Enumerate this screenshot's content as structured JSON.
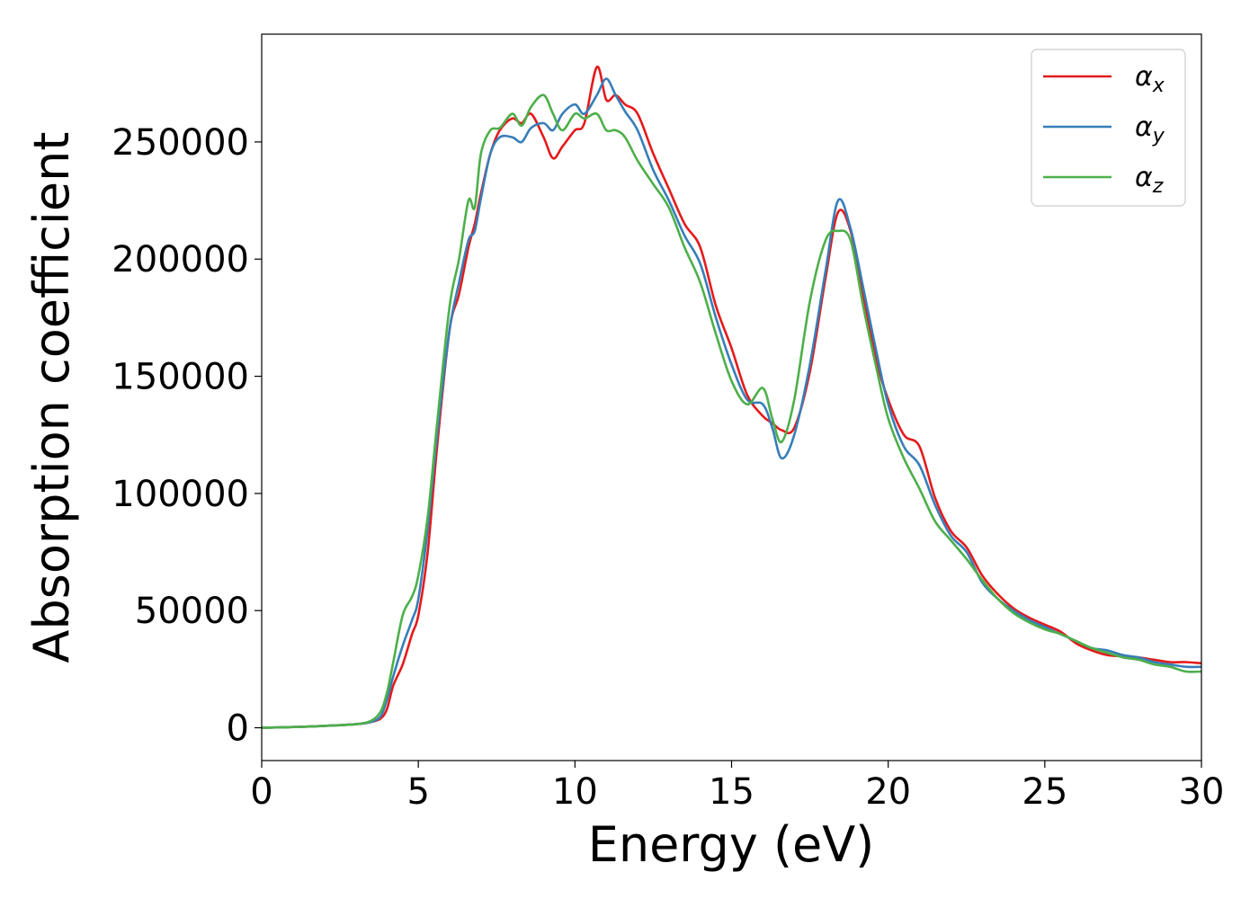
{
  "chart_data": {
    "type": "line",
    "xlabel": "Energy (eV)",
    "ylabel": "Absorption coefficient",
    "xlim": [
      0,
      30
    ],
    "ylim": [
      -14000,
      296000
    ],
    "xticks": [
      0,
      5,
      10,
      15,
      20,
      25,
      30
    ],
    "xtick_labels": [
      "0",
      "5",
      "10",
      "15",
      "20",
      "25",
      "30"
    ],
    "yticks": [
      0,
      50000,
      100000,
      150000,
      200000,
      250000
    ],
    "ytick_labels": [
      "0",
      "50000",
      "100000",
      "150000",
      "200000",
      "250000"
    ],
    "grid": false,
    "legend_position": "top-right",
    "series": [
      {
        "name": "α",
        "subscript": "x",
        "color": "#e41a1c",
        "x": [
          0,
          1,
          2,
          3,
          3.5,
          3.8,
          4.0,
          4.2,
          4.5,
          4.8,
          5.0,
          5.3,
          5.6,
          6.0,
          6.3,
          6.6,
          6.8,
          7.0,
          7.3,
          7.6,
          8.0,
          8.3,
          8.6,
          9.0,
          9.3,
          9.6,
          10.0,
          10.3,
          10.7,
          11.0,
          11.3,
          11.6,
          12.0,
          12.5,
          13.0,
          13.5,
          14.0,
          14.5,
          15.0,
          15.5,
          16.0,
          16.3,
          16.6,
          17.0,
          17.5,
          18.0,
          18.4,
          18.8,
          19.2,
          19.6,
          20.0,
          20.5,
          21.0,
          21.5,
          22.0,
          22.5,
          23.0,
          23.5,
          24.0,
          24.5,
          25.0,
          25.5,
          26.0,
          26.5,
          27.0,
          27.5,
          28.0,
          28.5,
          29.0,
          29.5,
          30.0
        ],
        "y": [
          0,
          300,
          800,
          1500,
          2500,
          4000,
          8000,
          18000,
          27000,
          40000,
          48000,
          75000,
          120000,
          170000,
          185000,
          205000,
          215000,
          228000,
          245000,
          255000,
          260000,
          258000,
          262000,
          252000,
          243000,
          248000,
          255000,
          258000,
          282000,
          268000,
          270000,
          266000,
          262000,
          245000,
          230000,
          215000,
          205000,
          180000,
          162000,
          142000,
          133000,
          130000,
          127000,
          128000,
          152000,
          192000,
          220000,
          212000,
          185000,
          158000,
          140000,
          125000,
          120000,
          98000,
          84000,
          77000,
          65000,
          57000,
          51000,
          47000,
          44000,
          41000,
          36000,
          33000,
          31000,
          30500,
          30000,
          29000,
          28000,
          28000,
          27500
        ]
      },
      {
        "name": "α",
        "subscript": "y",
        "color": "#377eb8",
        "x": [
          0,
          1,
          2,
          3,
          3.5,
          3.8,
          4.0,
          4.2,
          4.5,
          4.8,
          5.0,
          5.3,
          5.6,
          6.0,
          6.3,
          6.6,
          6.8,
          7.0,
          7.3,
          7.6,
          8.0,
          8.3,
          8.6,
          9.0,
          9.3,
          9.6,
          10.0,
          10.3,
          10.7,
          11.0,
          11.3,
          11.6,
          12.0,
          12.5,
          13.0,
          13.5,
          14.0,
          14.5,
          15.0,
          15.5,
          16.0,
          16.3,
          16.6,
          17.0,
          17.5,
          18.0,
          18.4,
          18.8,
          19.2,
          19.6,
          20.0,
          20.5,
          21.0,
          21.5,
          22.0,
          22.5,
          23.0,
          23.5,
          24.0,
          24.5,
          25.0,
          25.5,
          26.0,
          26.5,
          27.0,
          27.5,
          28.0,
          28.5,
          29.0,
          29.5,
          30.0
        ],
        "y": [
          0,
          300,
          800,
          1500,
          2500,
          5000,
          12000,
          22000,
          35000,
          46000,
          55000,
          85000,
          125000,
          170000,
          190000,
          208000,
          212000,
          226000,
          245000,
          252000,
          252000,
          250000,
          256000,
          258000,
          255000,
          262000,
          266000,
          262000,
          270000,
          277000,
          270000,
          263000,
          255000,
          238000,
          225000,
          210000,
          198000,
          175000,
          155000,
          140000,
          138000,
          128000,
          115000,
          125000,
          155000,
          195000,
          225000,
          213000,
          188000,
          162000,
          138000,
          120000,
          112000,
          95000,
          82000,
          75000,
          62000,
          55000,
          50000,
          46000,
          43000,
          40000,
          37000,
          34000,
          33000,
          31000,
          30000,
          28000,
          27000,
          26000,
          26000
        ]
      },
      {
        "name": "α",
        "subscript": "z",
        "color": "#4daf4a",
        "x": [
          0,
          1,
          2,
          3,
          3.5,
          3.8,
          4.0,
          4.2,
          4.5,
          4.8,
          5.0,
          5.3,
          5.6,
          6.0,
          6.3,
          6.6,
          6.8,
          7.0,
          7.3,
          7.6,
          8.0,
          8.3,
          8.6,
          9.0,
          9.3,
          9.6,
          10.0,
          10.3,
          10.7,
          11.0,
          11.3,
          11.6,
          12.0,
          12.5,
          13.0,
          13.5,
          14.0,
          14.5,
          15.0,
          15.5,
          16.0,
          16.3,
          16.6,
          17.0,
          17.5,
          18.0,
          18.4,
          18.8,
          19.2,
          19.6,
          20.0,
          20.5,
          21.0,
          21.5,
          22.0,
          22.5,
          23.0,
          23.5,
          24.0,
          24.5,
          25.0,
          25.5,
          26.0,
          26.5,
          27.0,
          27.5,
          28.0,
          28.5,
          29.0,
          29.5,
          30.0
        ],
        "y": [
          0,
          300,
          800,
          1500,
          3000,
          7000,
          15000,
          28000,
          48000,
          56000,
          65000,
          90000,
          130000,
          180000,
          200000,
          225000,
          222000,
          245000,
          255000,
          256000,
          262000,
          257000,
          265000,
          270000,
          262000,
          255000,
          262000,
          260000,
          262000,
          255000,
          255000,
          252000,
          242000,
          232000,
          222000,
          205000,
          190000,
          168000,
          148000,
          138000,
          145000,
          132000,
          122000,
          140000,
          182000,
          208000,
          212000,
          208000,
          180000,
          155000,
          132000,
          115000,
          102000,
          88000,
          80000,
          72000,
          63000,
          55000,
          49000,
          45000,
          42000,
          40000,
          37000,
          34000,
          32000,
          30000,
          29000,
          27000,
          26000,
          24000,
          24000
        ]
      }
    ]
  }
}
